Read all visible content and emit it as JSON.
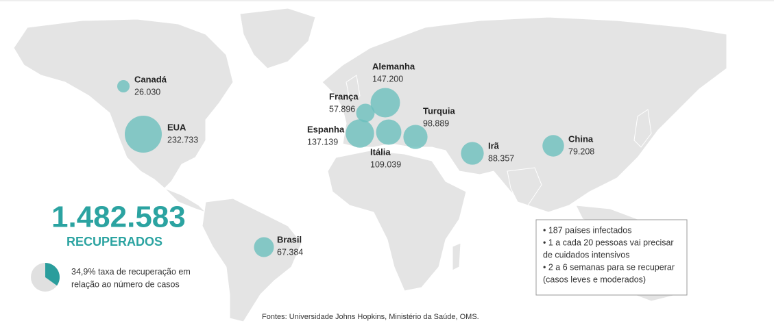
{
  "countries": [
    {
      "name": "Canadá",
      "value": 26030,
      "value_label": "26.030"
    },
    {
      "name": "EUA",
      "value": 232733,
      "value_label": "232.733"
    },
    {
      "name": "Brasil",
      "value": 67384,
      "value_label": "67.384"
    },
    {
      "name": "França",
      "value": 57896,
      "value_label": "57.896"
    },
    {
      "name": "Alemanha",
      "value": 147200,
      "value_label": "147.200"
    },
    {
      "name": "Espanha",
      "value": 137139,
      "value_label": "137.139"
    },
    {
      "name": "Itália",
      "value": 109039,
      "value_label": "109.039"
    },
    {
      "name": "Turquia",
      "value": 98889,
      "value_label": "98.889"
    },
    {
      "name": "Irã",
      "value": 88357,
      "value_label": "88.357"
    },
    {
      "name": "China",
      "value": 79208,
      "value_label": "79.208"
    }
  ],
  "total": {
    "value": 1482583,
    "value_label": "1.482.583",
    "caption": "RECUPERADOS"
  },
  "rate": {
    "value": 34.9,
    "value_label": "34,9%",
    "text_line1": "taxa de recuperação em",
    "text_line2": "relação ao número de casos"
  },
  "notes": [
    "• 187 países infectados",
    "• 1 a cada 20 pessoas vai precisar",
    "de cuidados intensivos",
    "• 2 a 6 semanas para se recuperar",
    "(casos leves e moderados)"
  ],
  "source": "Fontes: Universidade Johns Hopkins, Ministério da Saúde, OMS."
}
